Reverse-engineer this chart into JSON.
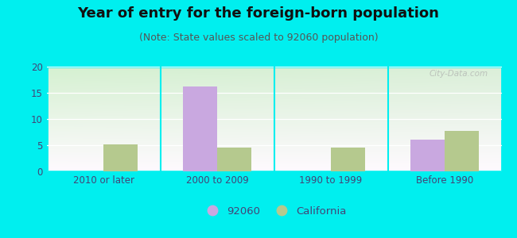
{
  "title": "Year of entry for the foreign-born population",
  "subtitle": "(Note: State values scaled to 92060 population)",
  "categories": [
    "2010 or later",
    "2000 to 2009",
    "1990 to 1999",
    "Before 1990"
  ],
  "values_92060": [
    0,
    16.2,
    0,
    6.1
  ],
  "values_california": [
    5.2,
    4.5,
    4.6,
    7.8
  ],
  "color_92060": "#c9a8e0",
  "color_california": "#b5c98e",
  "background_outer": "#00EFEF",
  "ylim": [
    0,
    20
  ],
  "yticks": [
    0,
    5,
    10,
    15,
    20
  ],
  "bar_width": 0.3,
  "legend_92060": "92060",
  "legend_california": "California",
  "title_fontsize": 13,
  "subtitle_fontsize": 9,
  "tick_fontsize": 8.5,
  "legend_fontsize": 9.5,
  "title_color": "#111111",
  "subtitle_color": "#555555",
  "tick_color": "#444477"
}
